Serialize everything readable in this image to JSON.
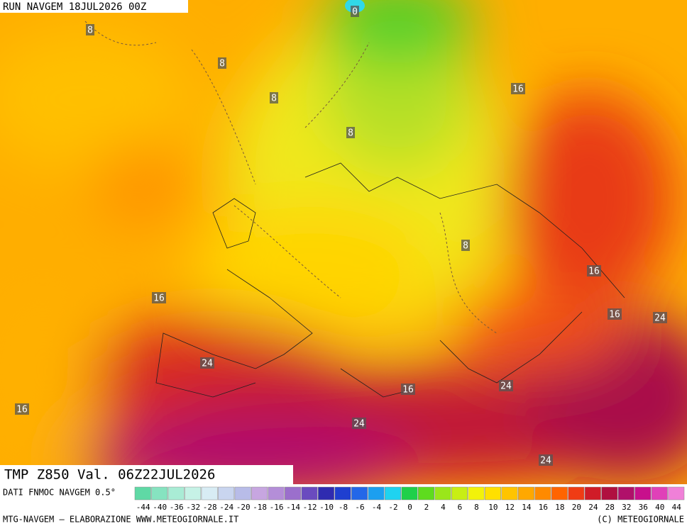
{
  "header": {
    "run": "RUN NAVGEM 18JUL2026 00Z"
  },
  "map": {
    "contour_labels": [
      8,
      0,
      8,
      8,
      8,
      16,
      8,
      16,
      16,
      16,
      24,
      24,
      16,
      24,
      16,
      24,
      24
    ]
  },
  "caption": {
    "title": "TMP Z850 Val. 06Z22JUL2026",
    "source": "DATI FNMOC NAVGEM 0.5°",
    "credit": "MTG-NAVGEM — ELABORAZIONE WWW.METEOGIORNALE.IT",
    "copyright": "(C) METEOGIORNALE"
  },
  "colorbar": {
    "ticks": [
      -44,
      -40,
      -36,
      -32,
      -28,
      -24,
      -20,
      -18,
      -16,
      -14,
      -12,
      -10,
      -8,
      -6,
      -4,
      -2,
      0,
      2,
      4,
      6,
      8,
      10,
      12,
      14,
      16,
      18,
      20,
      24,
      28,
      32,
      36,
      40,
      44
    ],
    "colors": [
      "#5fd9a5",
      "#86e3c0",
      "#a9ecd5",
      "#c6f2e6",
      "#d8ecf4",
      "#c9d5ef",
      "#b8bce8",
      "#c7a6e0",
      "#b48ed8",
      "#9b6fcc",
      "#6a4bbf",
      "#2f2bb0",
      "#1f3fd0",
      "#2367e8",
      "#1c9ff0",
      "#1fd3f0",
      "#1fd04a",
      "#5edc1e",
      "#9ae61a",
      "#c8ee14",
      "#f2f20a",
      "#ffe000",
      "#ffc400",
      "#ffa800",
      "#ff8a00",
      "#ff6400",
      "#f03c14",
      "#d01c28",
      "#b01040",
      "#b0106a",
      "#c8108c",
      "#e040b8",
      "#f080d8"
    ]
  }
}
